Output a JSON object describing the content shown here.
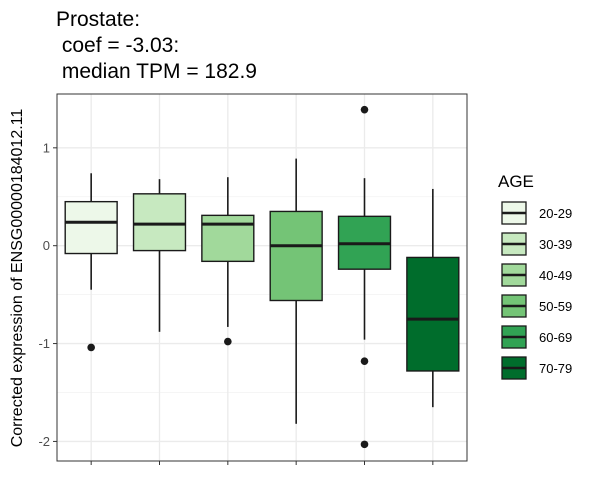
{
  "title_lines": [
    "Prostate:",
    " coef = -3.03:",
    " median TPM = 182.9"
  ],
  "chart_data": {
    "type": "box",
    "title": "Prostate:\n coef = -3.03:\n median TPM = 182.9",
    "xlabel": "",
    "ylabel": "Corrected expression of ENSG00000184012.11",
    "ylim": [
      -2.2,
      1.55
    ],
    "yticks": [
      -2,
      -1,
      0,
      1
    ],
    "ytick_labels": [
      "-2",
      "-1",
      "0",
      "1"
    ],
    "grid": true,
    "legend": {
      "title": "AGE",
      "position": "right"
    },
    "categories": [
      "20-29",
      "30-39",
      "40-49",
      "50-59",
      "60-69",
      "70-79"
    ],
    "series": [
      {
        "name": "20-29",
        "color": "#edf8e9",
        "whisker_low": -0.45,
        "q1": -0.08,
        "median": 0.24,
        "q3": 0.45,
        "whisker_high": 0.74,
        "outliers": [
          -1.04
        ]
      },
      {
        "name": "30-39",
        "color": "#c7e9c0",
        "whisker_low": -0.88,
        "q1": -0.05,
        "median": 0.22,
        "q3": 0.53,
        "whisker_high": 0.68,
        "outliers": []
      },
      {
        "name": "40-49",
        "color": "#a1d99b",
        "whisker_low": -0.83,
        "q1": -0.16,
        "median": 0.22,
        "q3": 0.31,
        "whisker_high": 0.7,
        "outliers": [
          -0.98
        ]
      },
      {
        "name": "50-59",
        "color": "#74c476",
        "whisker_low": -1.82,
        "q1": -0.56,
        "median": 0.0,
        "q3": 0.35,
        "whisker_high": 0.89,
        "outliers": []
      },
      {
        "name": "60-69",
        "color": "#31a354",
        "whisker_low": -0.96,
        "q1": -0.24,
        "median": 0.02,
        "q3": 0.3,
        "whisker_high": 0.69,
        "outliers": [
          1.39,
          -1.18,
          -2.03
        ]
      },
      {
        "name": "70-79",
        "color": "#006d2c",
        "whisker_low": -1.65,
        "q1": -1.28,
        "median": -0.75,
        "q3": -0.12,
        "whisker_high": 0.58,
        "outliers": []
      }
    ]
  }
}
